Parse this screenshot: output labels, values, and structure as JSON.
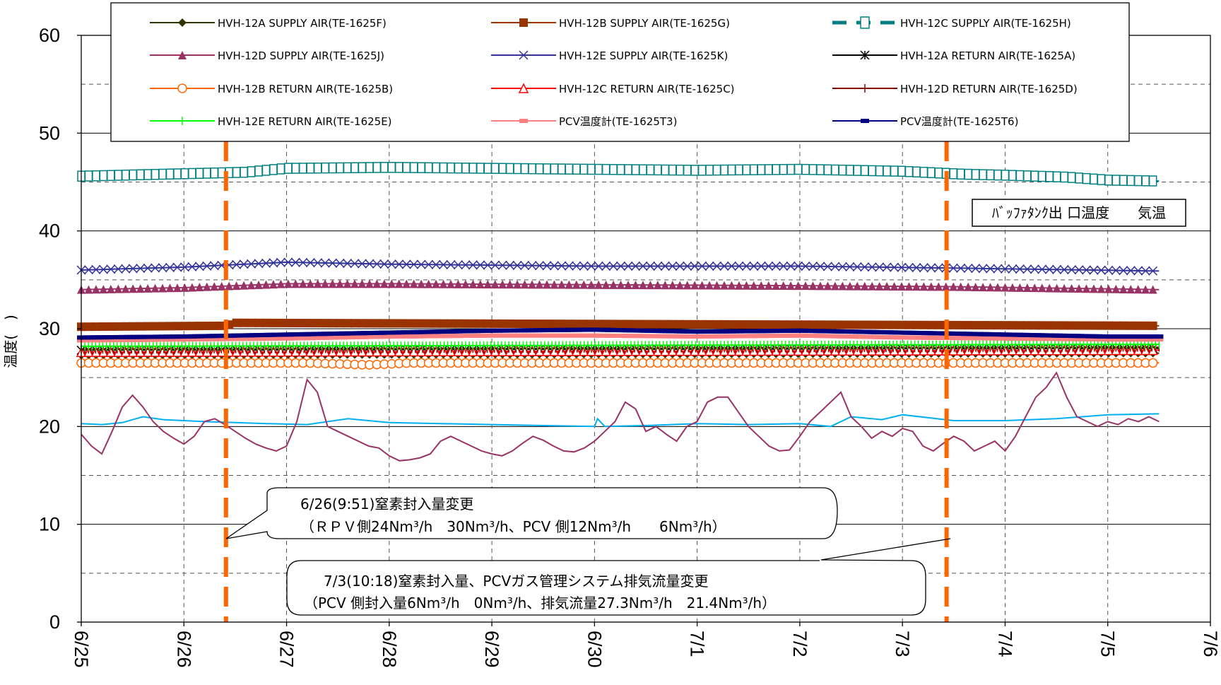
{
  "chart_data": {
    "type": "line",
    "ylabel": "温度(　)",
    "ylim": [
      0,
      60
    ],
    "yticks": [
      "0",
      "10",
      "20",
      "30",
      "40",
      "50",
      "60"
    ],
    "xlim": [
      "6/25",
      "7/6"
    ],
    "xticks": [
      "6/25",
      "6/26",
      "6/27",
      "6/28",
      "6/29",
      "6/30",
      "7/1",
      "7/2",
      "7/3",
      "7/4",
      "7/5",
      "7/6"
    ],
    "grid": true,
    "legend_placement": "top",
    "series": [
      {
        "name": "HVH-12A SUPPLY AIR(TE-1625F)",
        "color": "#333300",
        "marker": "diamond",
        "x": [
          0,
          10.5
        ],
        "values": [
          27.3,
          27.5
        ]
      },
      {
        "name": "HVH-12B SUPPLY AIR(TE-1625G)",
        "color": "#993300",
        "marker": "square",
        "x": [
          0,
          1.4,
          1.5,
          10.5
        ],
        "values": [
          30.2,
          30.3,
          30.6,
          30.3
        ]
      },
      {
        "name": "HVH-12C SUPPLY AIR(TE-1625H)",
        "color": "#008080",
        "marker": "open-square",
        "x": [
          0,
          0.8,
          1.6,
          2,
          3,
          4,
          5,
          6,
          7,
          8,
          8.6,
          9,
          9.6,
          10,
          10.5
        ],
        "values": [
          45.6,
          45.8,
          46.0,
          46.4,
          46.5,
          46.4,
          46.3,
          46.2,
          46.3,
          46.1,
          45.8,
          45.7,
          45.5,
          45.2,
          45.1
        ]
      },
      {
        "name": "HVH-12D SUPPLY AIR(TE-1625J)",
        "color": "#993366",
        "marker": "triangle",
        "x": [
          0,
          1,
          2,
          3,
          5,
          7,
          8.5,
          10.5
        ],
        "values": [
          34.0,
          34.2,
          34.6,
          34.6,
          34.5,
          34.4,
          34.3,
          34.0
        ]
      },
      {
        "name": "HVH-12E SUPPLY AIR(TE-1625K)",
        "color": "#333399",
        "marker": "x",
        "x": [
          0,
          1,
          2,
          3,
          5,
          7,
          8.5,
          10.5
        ],
        "values": [
          36.0,
          36.3,
          36.8,
          36.6,
          36.4,
          36.4,
          36.2,
          35.9
        ]
      },
      {
        "name": "HVH-12A RETURN AIR(TE-1625A)",
        "color": "#000000",
        "marker": "star",
        "x": [
          0,
          10.5
        ],
        "values": [
          27.8,
          28.0
        ]
      },
      {
        "name": "HVH-12B RETURN AIR(TE-1625B)",
        "color": "#ff6600",
        "marker": "circle",
        "x": [
          0,
          2.2,
          2.8,
          3.2,
          10.5
        ],
        "values": [
          26.5,
          26.5,
          26.3,
          26.5,
          26.5
        ]
      },
      {
        "name": "HVH-12C RETURN AIR(TE-1625C)",
        "color": "#ff0000",
        "marker": "open-triangle",
        "x": [
          0,
          10.5
        ],
        "values": [
          27.6,
          27.8
        ]
      },
      {
        "name": "HVH-12D RETURN AIR(TE-1625D)",
        "color": "#800000",
        "marker": "plus",
        "x": [
          0,
          10.5
        ],
        "values": [
          27.9,
          28.1
        ]
      },
      {
        "name": "HVH-12E RETURN AIR(TE-1625E)",
        "color": "#00ff00",
        "marker": "plus",
        "x": [
          0,
          10.5
        ],
        "values": [
          28.2,
          28.4
        ]
      },
      {
        "name": "PCV温度計(TE-1625T3)",
        "color": "#ff8080",
        "marker": "dash",
        "x": [
          0,
          1,
          2,
          3,
          4,
          5,
          6,
          7,
          8,
          9,
          10,
          10.5
        ],
        "values": [
          28.8,
          28.9,
          29.0,
          29.2,
          29.3,
          29.3,
          29.2,
          29.3,
          29.1,
          29.0,
          28.9,
          28.9
        ]
      },
      {
        "name": "PCV温度計(TE-1625T6)",
        "color": "#000080",
        "marker": "dash",
        "x": [
          0,
          1,
          2,
          3,
          4,
          5,
          6,
          7,
          8,
          9,
          10,
          10.5
        ],
        "values": [
          29.1,
          29.2,
          29.4,
          29.6,
          29.8,
          29.9,
          29.7,
          29.8,
          29.6,
          29.4,
          29.2,
          29.2
        ]
      },
      {
        "name": "バッファタンク出口温度",
        "color": "#00b0f0",
        "marker": "none",
        "x": [
          0,
          0.2,
          0.4,
          0.6,
          0.8,
          1.0,
          1.2,
          1.5,
          1.8,
          2.2,
          2.6,
          3.0,
          3.5,
          4.0,
          4.5,
          5.0,
          5.03,
          5.1,
          5.5,
          6.0,
          6.5,
          7.0,
          7.3,
          7.5,
          7.8,
          8.0,
          8.5,
          9.0,
          9.5,
          10.0,
          10.5
        ],
        "values": [
          20.3,
          20.2,
          20.4,
          21.0,
          20.7,
          20.6,
          20.5,
          20.4,
          20.3,
          20.2,
          20.8,
          20.4,
          20.3,
          20.2,
          20.1,
          20.0,
          20.8,
          20.0,
          20.1,
          20.3,
          20.2,
          20.3,
          20.0,
          21.0,
          20.7,
          21.2,
          20.6,
          20.6,
          20.8,
          21.2,
          21.3
        ]
      },
      {
        "name": "気温",
        "color": "#993366",
        "marker": "none",
        "x": [
          0,
          0.1,
          0.2,
          0.3,
          0.4,
          0.5,
          0.6,
          0.7,
          0.8,
          0.9,
          1.0,
          1.1,
          1.2,
          1.3,
          1.4,
          1.5,
          1.6,
          1.7,
          1.8,
          1.9,
          2.0,
          2.1,
          2.2,
          2.3,
          2.4,
          2.5,
          2.6,
          2.7,
          2.8,
          2.9,
          3.0,
          3.1,
          3.2,
          3.3,
          3.4,
          3.5,
          3.6,
          3.7,
          3.8,
          3.9,
          4.0,
          4.1,
          4.2,
          4.3,
          4.4,
          4.5,
          4.6,
          4.7,
          4.8,
          4.9,
          5.0,
          5.1,
          5.2,
          5.3,
          5.4,
          5.5,
          5.6,
          5.7,
          5.8,
          5.9,
          6.0,
          6.1,
          6.2,
          6.3,
          6.4,
          6.5,
          6.6,
          6.7,
          6.8,
          6.9,
          7.0,
          7.1,
          7.2,
          7.3,
          7.4,
          7.5,
          7.6,
          7.7,
          7.8,
          7.9,
          8.0,
          8.1,
          8.2,
          8.3,
          8.4,
          8.5,
          8.6,
          8.7,
          8.8,
          8.9,
          9.0,
          9.1,
          9.2,
          9.3,
          9.4,
          9.5,
          9.6,
          9.7,
          9.8,
          9.9,
          10.0,
          10.1,
          10.2,
          10.3,
          10.4,
          10.5
        ],
        "values": [
          19.2,
          18.0,
          17.2,
          19.5,
          22.0,
          23.2,
          22.0,
          20.5,
          19.5,
          18.8,
          18.2,
          19.0,
          20.5,
          20.8,
          20.2,
          19.5,
          18.8,
          18.2,
          17.8,
          17.5,
          18.0,
          20.5,
          24.8,
          23.5,
          20.0,
          19.5,
          19.0,
          18.5,
          18.0,
          17.8,
          17.0,
          16.5,
          16.6,
          16.8,
          17.2,
          18.5,
          19.0,
          18.5,
          18.0,
          17.5,
          17.2,
          17.0,
          17.5,
          18.3,
          19.0,
          18.6,
          18.0,
          17.5,
          17.4,
          17.8,
          18.5,
          19.5,
          20.5,
          22.5,
          21.8,
          19.5,
          20.0,
          19.2,
          18.5,
          20.0,
          20.5,
          22.5,
          23.0,
          23.0,
          21.5,
          20.0,
          19.0,
          18.0,
          17.5,
          17.6,
          19.0,
          20.5,
          21.5,
          22.5,
          23.5,
          21.0,
          20.0,
          18.8,
          19.5,
          19.0,
          19.8,
          19.5,
          18.0,
          17.5,
          18.3,
          19.0,
          18.5,
          17.5,
          18.0,
          18.5,
          17.5,
          19.0,
          21.0,
          23.0,
          24.0,
          25.5,
          23.0,
          21.0,
          20.5,
          20.0,
          20.5,
          20.2,
          20.8,
          20.5,
          21.0,
          20.5
        ]
      }
    ],
    "events": [
      {
        "x": 1.41,
        "label": "6/26(9:51)窒素封入量変更",
        "detail": "（ＲＰＶ側24Nm³/h　30Nm³/h、PCV 側12Nm³/h　　6Nm³/h）"
      },
      {
        "x": 8.43,
        "label": "7/3(10:18)窒素封入量、PCVガス管理システム排気流量変更",
        "detail": "（PCV 側封入量6Nm³/h　0Nm³/h、排気流量27.3Nm³/h　21.4Nm³/h）"
      }
    ],
    "inner_label": "ﾊﾞｯﾌｧﾀﾝｸ出 口温度　　気温"
  }
}
